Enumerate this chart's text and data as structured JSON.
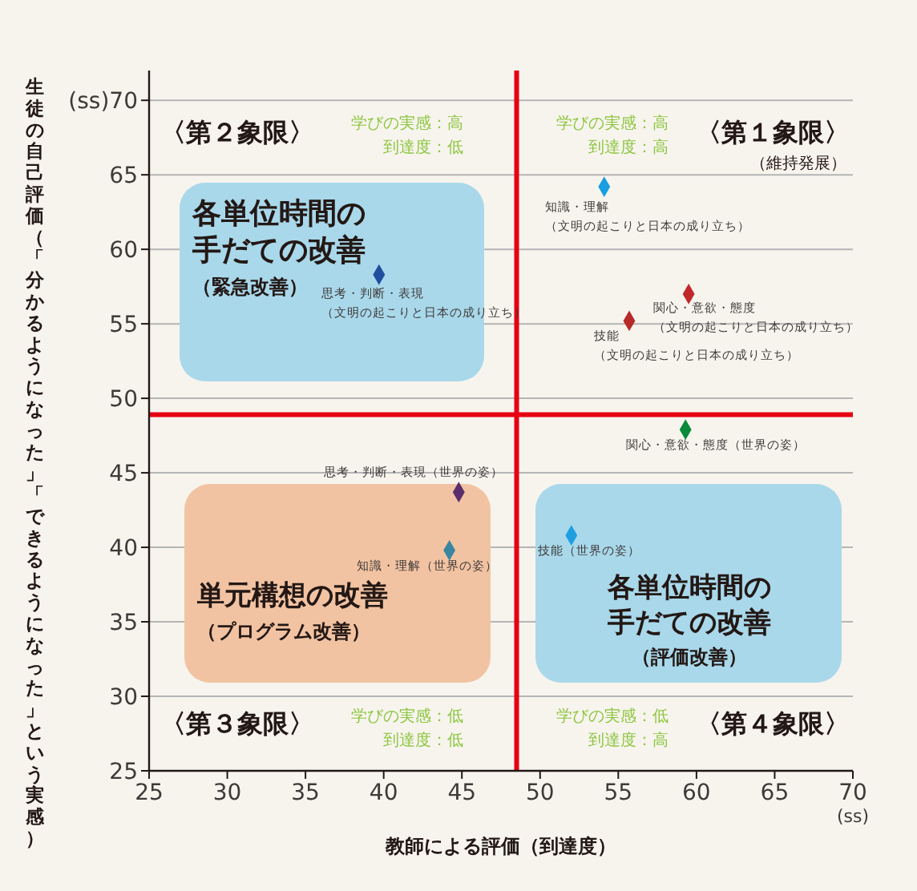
{
  "chart_data": {
    "type": "scatter",
    "xlabel": "教師による評価（到達度）",
    "ylabel": "生徒の自己評価（「分かるようになった」「できるようになった」という実感）",
    "xlim": [
      25,
      70
    ],
    "ylim": [
      25,
      72
    ],
    "xticks": [
      25,
      30,
      35,
      40,
      45,
      50,
      55,
      60,
      65,
      {
        "value": 70,
        "label": "70\n(ss)"
      }
    ],
    "yticks": [
      25,
      30,
      35,
      40,
      45,
      50,
      55,
      60,
      65,
      {
        "value": 70,
        "label": "(ss)70"
      }
    ],
    "grid": "y",
    "legend": false,
    "marker": "diamond",
    "series": [
      {
        "name": "知識・理解（文明の起こりと日本の成り立ち）",
        "color": "#1a9ee0",
        "x": [
          54.1
        ],
        "values": [
          64.2
        ]
      },
      {
        "name": "思考・判断・表現（文明の起こりと日本の成り立ち）",
        "color": "#1f4ea0",
        "x": [
          39.7
        ],
        "values": [
          58.3
        ]
      },
      {
        "name": "関心・意欲・態度（文明の起こりと日本の成り立ち）",
        "color": "#c0282d",
        "x": [
          59.5
        ],
        "values": [
          57.0
        ]
      },
      {
        "name": "技能（文明の起こりと日本の成り立ち）",
        "color": "#b82a2a",
        "x": [
          55.7
        ],
        "values": [
          55.2
        ]
      },
      {
        "name": "関心・意欲・態度（世界の姿）",
        "color": "#0a8a3a",
        "x": [
          59.3
        ],
        "values": [
          47.9
        ]
      },
      {
        "name": "思考・判断・表現（世界の姿）",
        "color": "#5a2e6a",
        "x": [
          44.8
        ],
        "values": [
          43.7
        ]
      },
      {
        "name": "知識・理解（世界の姿）",
        "color": "#3a85a0",
        "x": [
          44.2
        ],
        "values": [
          39.8
        ]
      },
      {
        "name": "技能（世界の姿）",
        "color": "#1ea0e0",
        "x": [
          52.0
        ],
        "values": [
          40.8
        ]
      }
    ],
    "ref_lines": [
      {
        "axis": "x",
        "value": 48.5,
        "color": "#e60012"
      },
      {
        "axis": "y",
        "value": 48.9,
        "color": "#e60012"
      }
    ],
    "annotations": [
      "〈第２象限〉",
      "学びの実感：高到達度：低",
      "学びの実感：高到達度：高",
      "〈第１象限〉",
      "（維持発展）",
      "各単位時間の手だての改善",
      "（緊急改善）",
      "単元構想の改善",
      "（プログラム改善）",
      "各単位時間の手だての改善",
      "（評価改善）",
      "〈第３象限〉",
      "学びの実感：低到達度：低",
      "学びの実感：低到達度：高",
      "〈第４象限〉"
    ]
  }
}
